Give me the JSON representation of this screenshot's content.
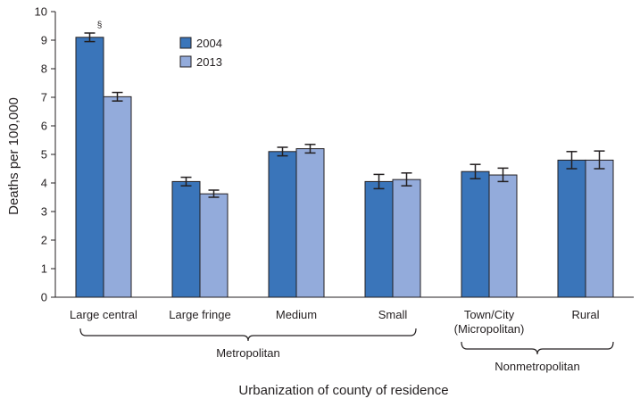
{
  "chart_data": {
    "type": "bar",
    "categories": [
      "Large central",
      "Large fringe",
      "Medium",
      "Small",
      "Town/City (Micropolitan)",
      "Rural"
    ],
    "category_lines": [
      [
        "Large central"
      ],
      [
        "Large fringe"
      ],
      [
        "Medium"
      ],
      [
        "Small"
      ],
      [
        "Town/City",
        "(Micropolitan)"
      ],
      [
        "Rural"
      ]
    ],
    "series": [
      {
        "name": "2004",
        "color": "#3a75ba",
        "values": [
          9.1,
          4.05,
          5.1,
          4.05,
          4.4,
          4.8
        ],
        "ci_low": [
          8.95,
          3.9,
          4.95,
          3.8,
          4.15,
          4.5
        ],
        "ci_high": [
          9.25,
          4.2,
          5.25,
          4.3,
          4.65,
          5.1
        ]
      },
      {
        "name": "2013",
        "color": "#93abdb",
        "values": [
          7.02,
          3.62,
          5.2,
          4.12,
          4.28,
          4.8
        ],
        "ci_low": [
          6.87,
          3.5,
          5.05,
          3.9,
          4.05,
          4.5
        ],
        "ci_high": [
          7.17,
          3.75,
          5.35,
          4.35,
          4.52,
          5.12
        ]
      }
    ],
    "annotations": [
      {
        "text": "§",
        "category": "Large central",
        "series": "2004"
      }
    ],
    "groups": [
      {
        "label": "Metropolitan",
        "categories": [
          "Large central",
          "Large fringe",
          "Medium",
          "Small"
        ]
      },
      {
        "label": "Nonmetropolitan",
        "categories": [
          "Town/City (Micropolitan)",
          "Rural"
        ]
      }
    ],
    "title": "",
    "xlabel": "Urbanization of county of residence",
    "ylabel": "Deaths per 100,000",
    "ylim": [
      0,
      10
    ],
    "yticks": [
      0,
      1,
      2,
      3,
      4,
      5,
      6,
      7,
      8,
      9,
      10
    ],
    "grid": false,
    "legend_position": "top-center"
  }
}
